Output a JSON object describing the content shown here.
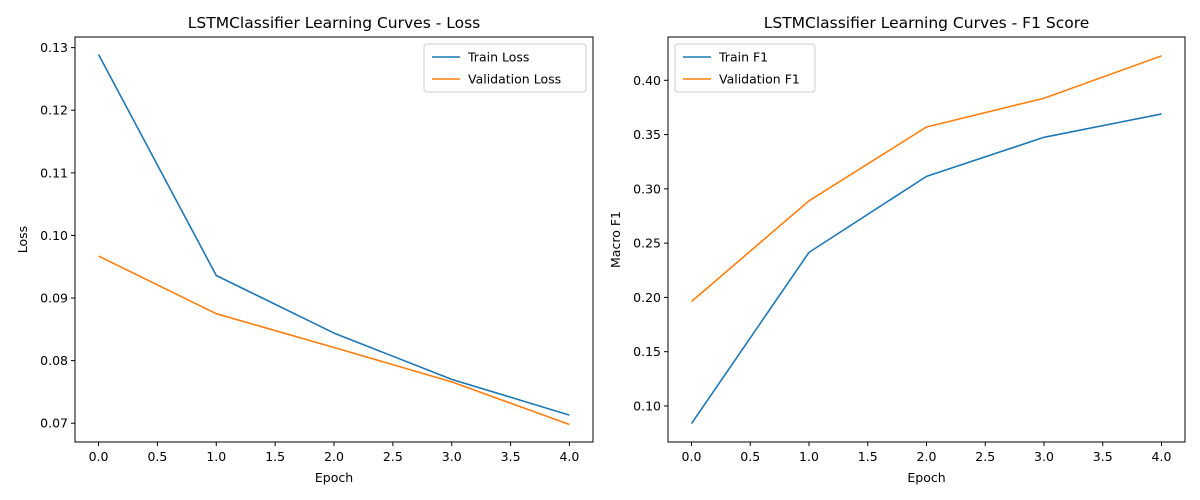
{
  "chart_data": [
    {
      "type": "line",
      "title": "LSTMClassifier Learning Curves - Loss",
      "xlabel": "Epoch",
      "ylabel": "Loss",
      "xlim": [
        -0.2,
        4.2
      ],
      "ylim": [
        0.067,
        0.1317
      ],
      "xticks": [
        0.0,
        0.5,
        1.0,
        1.5,
        2.0,
        2.5,
        3.0,
        3.5,
        4.0
      ],
      "xtick_labels": [
        "0.0",
        "0.5",
        "1.0",
        "1.5",
        "2.0",
        "2.5",
        "3.0",
        "3.5",
        "4.0"
      ],
      "yticks": [
        0.07,
        0.08,
        0.09,
        0.1,
        0.11,
        0.12,
        0.13
      ],
      "ytick_labels": [
        "0.07",
        "0.08",
        "0.09",
        "0.10",
        "0.11",
        "0.12",
        "0.13"
      ],
      "grid": false,
      "legend_position": "top-right",
      "x": [
        0,
        1,
        2,
        3,
        4
      ],
      "series": [
        {
          "name": "Train Loss",
          "color": "#1f77b4",
          "values": [
            0.1289,
            0.0936,
            0.0844,
            0.077,
            0.0713
          ]
        },
        {
          "name": "Validation Loss",
          "color": "#ff7f0e",
          "values": [
            0.0967,
            0.0875,
            0.0821,
            0.0766,
            0.0698
          ]
        }
      ]
    },
    {
      "type": "line",
      "title": "LSTMClassifier Learning Curves - F1 Score",
      "xlabel": "Epoch",
      "ylabel": "Macro F1",
      "xlim": [
        -0.2,
        4.2
      ],
      "ylim": [
        0.0668,
        0.4399
      ],
      "xticks": [
        0.0,
        0.5,
        1.0,
        1.5,
        2.0,
        2.5,
        3.0,
        3.5,
        4.0
      ],
      "xtick_labels": [
        "0.0",
        "0.5",
        "1.0",
        "1.5",
        "2.0",
        "2.5",
        "3.0",
        "3.5",
        "4.0"
      ],
      "yticks": [
        0.1,
        0.15,
        0.2,
        0.25,
        0.3,
        0.35,
        0.4
      ],
      "ytick_labels": [
        "0.10",
        "0.15",
        "0.20",
        "0.25",
        "0.30",
        "0.35",
        "0.40"
      ],
      "grid": false,
      "legend_position": "top-left",
      "x": [
        0,
        1,
        2,
        3,
        4
      ],
      "series": [
        {
          "name": "Train F1",
          "color": "#1f77b4",
          "values": [
            0.0838,
            0.2415,
            0.3115,
            0.3475,
            0.369
          ]
        },
        {
          "name": "Validation F1",
          "color": "#ff7f0e",
          "values": [
            0.1962,
            0.289,
            0.357,
            0.3835,
            0.4225
          ]
        }
      ]
    }
  ]
}
